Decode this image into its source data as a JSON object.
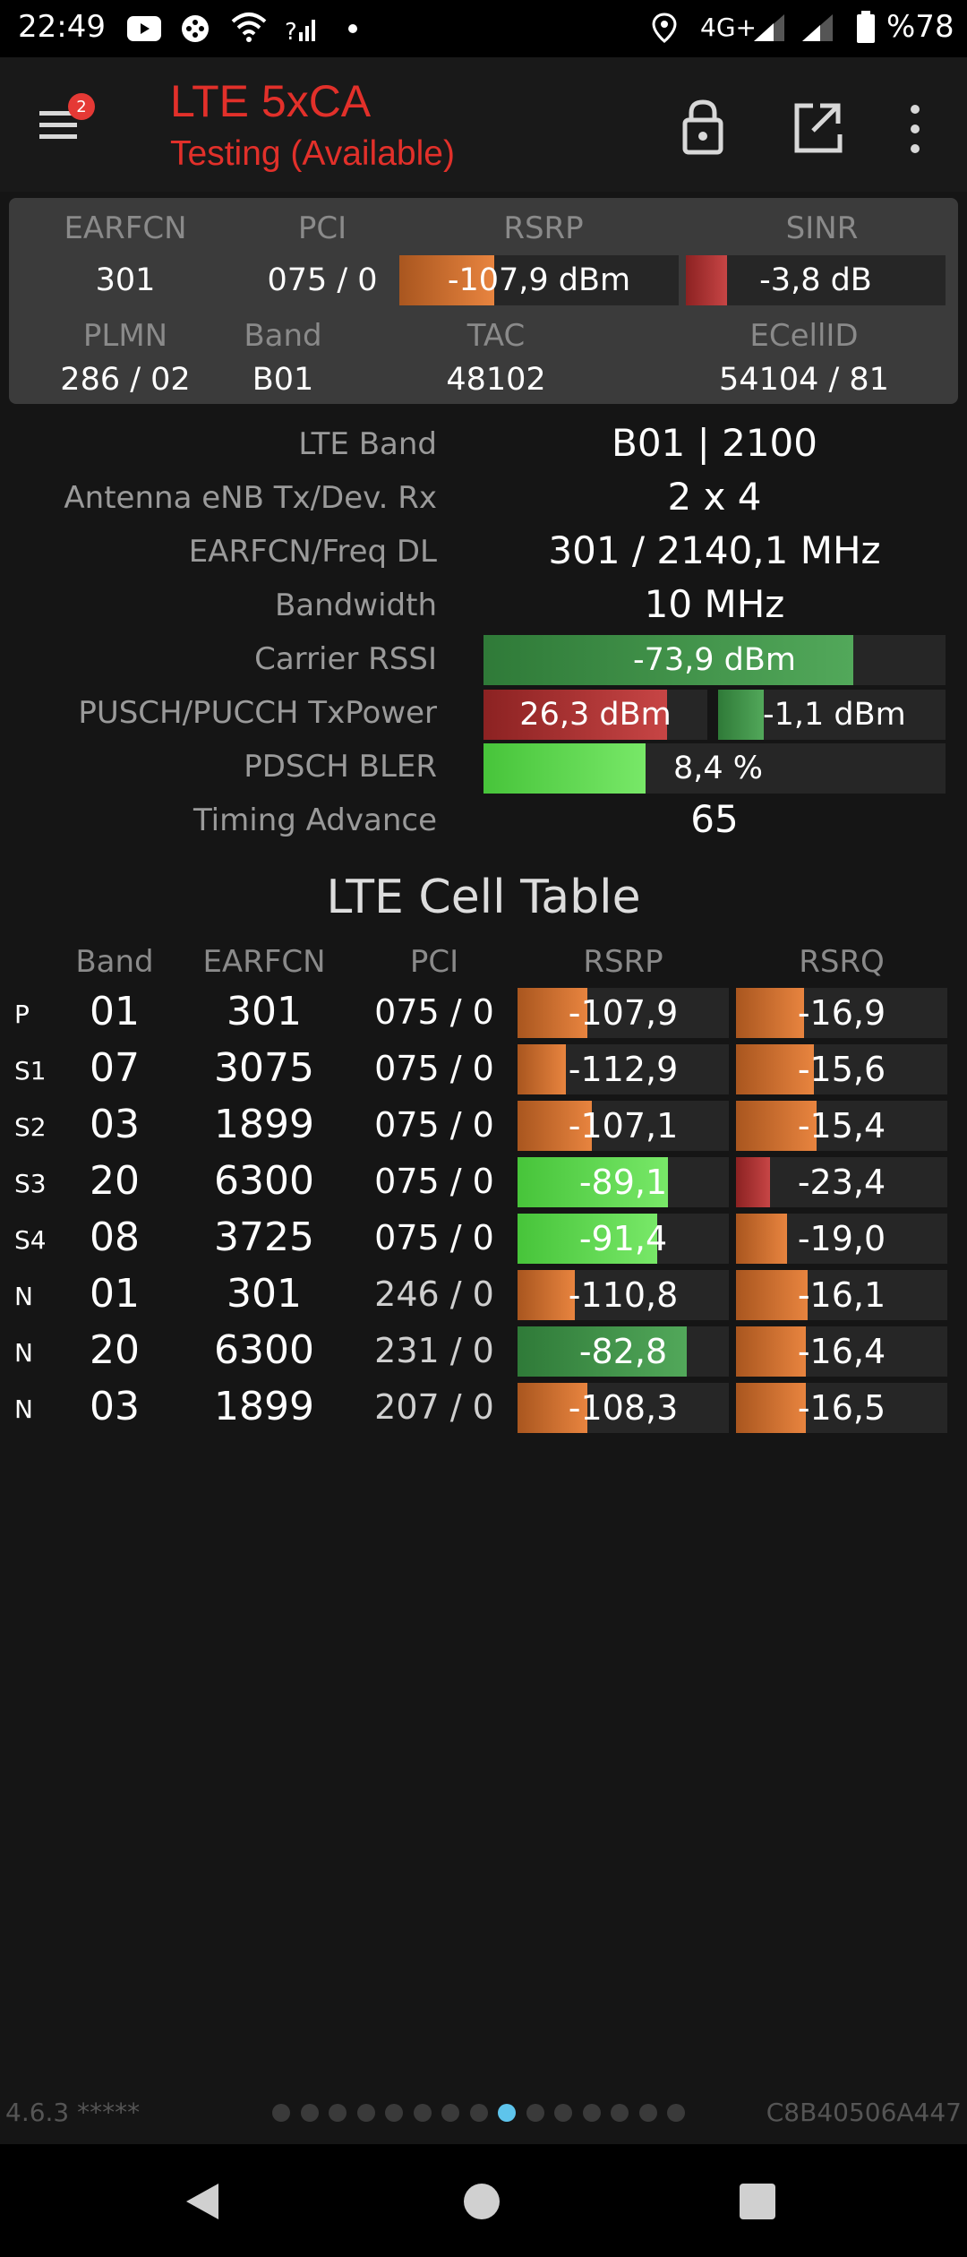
{
  "status_bar": {
    "time": "22:49",
    "network": "4G+",
    "battery": "%78",
    "icons": [
      "youtube-icon",
      "game-icon",
      "wifi-icon",
      "signal-question-icon",
      "dot-icon",
      "location-icon",
      "signal-icon",
      "signal-icon",
      "battery-icon"
    ]
  },
  "app_bar": {
    "badge_count": "2",
    "title": "LTE 5xCA",
    "subtitle": "Testing (Available)",
    "icons": [
      "menu-icon",
      "lock-icon",
      "open-external-icon",
      "more-vert-icon"
    ]
  },
  "summary": {
    "labels": {
      "earfcn": "EARFCN",
      "pci": "PCI",
      "rsrp": "RSRP",
      "sinr": "SINR",
      "plmn": "PLMN",
      "band": "Band",
      "tac": "TAC",
      "ecellid": "ECellID"
    },
    "earfcn": "301",
    "pci": "075 / 0",
    "rsrp": "-107,9 dBm",
    "rsrp_level": 0.34,
    "sinr": "-3,8 dB",
    "sinr_level": 0.16,
    "plmn": "286 / 02",
    "band": "B01",
    "tac": "48102",
    "ecellid": "54104 / 81"
  },
  "details": {
    "lte_band_label": "LTE Band",
    "lte_band": "B01 | 2100",
    "antenna_label": "Antenna eNB Tx/Dev. Rx",
    "antenna": "2 x 4",
    "earfcn_freq_label": "EARFCN/Freq DL",
    "earfcn_freq": "301 / 2140,1 MHz",
    "bandwidth_label": "Bandwidth",
    "bandwidth": "10 MHz",
    "rssi_label": "Carrier RSSI",
    "rssi": "-73,9 dBm",
    "rssi_level": 0.8,
    "txpower_label": "PUSCH/PUCCH TxPower",
    "pusch": "26,3 dBm",
    "pusch_level": 0.82,
    "pucch": "-1,1 dBm",
    "pucch_level": 0.2,
    "bler_label": "PDSCH BLER",
    "bler": "8,4 %",
    "bler_level": 0.35,
    "ta_label": "Timing Advance",
    "ta": "65"
  },
  "cell_table": {
    "title": "LTE Cell Table",
    "headers": {
      "band": "Band",
      "earfcn": "EARFCN",
      "pci": "PCI",
      "rsrp": "RSRP",
      "rsrq": "RSRQ"
    },
    "rows": [
      {
        "type": "P",
        "band": "01",
        "earfcn": "301",
        "pci": "075 / 0",
        "rsrp": "-107,9",
        "rsrq": "-16,9",
        "rsrp_level": 0.33,
        "rsrq_level": 0.32,
        "rsrp_color": "orange",
        "rsrq_color": "orange"
      },
      {
        "type": "S1",
        "band": "07",
        "earfcn": "3075",
        "pci": "075 / 0",
        "rsrp": "-112,9",
        "rsrq": "-15,6",
        "rsrp_level": 0.23,
        "rsrq_level": 0.37,
        "rsrp_color": "orange",
        "rsrq_color": "orange"
      },
      {
        "type": "S2",
        "band": "03",
        "earfcn": "1899",
        "pci": "075 / 0",
        "rsrp": "-107,1",
        "rsrq": "-15,4",
        "rsrp_level": 0.35,
        "rsrq_level": 0.38,
        "rsrp_color": "orange",
        "rsrq_color": "orange"
      },
      {
        "type": "S3",
        "band": "20",
        "earfcn": "6300",
        "pci": "075 / 0",
        "rsrp": "-89,1",
        "rsrq": "-23,4",
        "rsrp_level": 0.71,
        "rsrq_level": 0.16,
        "rsrp_color": "lgreen",
        "rsrq_color": "red"
      },
      {
        "type": "S4",
        "band": "08",
        "earfcn": "3725",
        "pci": "075 / 0",
        "rsrp": "-91,4",
        "rsrq": "-19,0",
        "rsrp_level": 0.66,
        "rsrq_level": 0.24,
        "rsrp_color": "lgreen",
        "rsrq_color": "orange"
      },
      {
        "type": "N",
        "band": "01",
        "earfcn": "301",
        "pci": "246 / 0",
        "rsrp": "-110,8",
        "rsrq": "-16,1",
        "rsrp_level": 0.27,
        "rsrq_level": 0.34,
        "rsrp_color": "orange",
        "rsrq_color": "orange",
        "grey_pci": true
      },
      {
        "type": "N",
        "band": "20",
        "earfcn": "6300",
        "pci": "231 / 0",
        "rsrp": "-82,8",
        "rsrq": "-16,4",
        "rsrp_level": 0.8,
        "rsrq_level": 0.33,
        "rsrp_color": "green",
        "rsrq_color": "orange",
        "grey_pci": true
      },
      {
        "type": "N",
        "band": "03",
        "earfcn": "1899",
        "pci": "207 / 0",
        "rsrp": "-108,3",
        "rsrq": "-16,5",
        "rsrp_level": 0.33,
        "rsrq_level": 0.33,
        "rsrp_color": "orange",
        "rsrq_color": "orange",
        "grey_pci": true
      }
    ]
  },
  "footer": {
    "version": "4.6.3 *****",
    "device_id": "C8B40506A447",
    "page_count": 15,
    "active_page": 8
  },
  "nav_bar": {
    "icons": [
      "back-icon",
      "home-icon",
      "recents-icon"
    ]
  }
}
